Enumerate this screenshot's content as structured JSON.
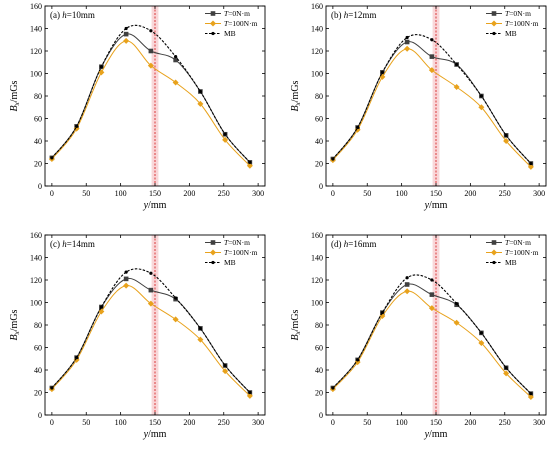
{
  "chart_data": [
    {
      "type": "line",
      "title": "(a) h=10mm",
      "xlabel": "y/mm",
      "ylabel": "Bx/mGs",
      "xlim": [
        -10,
        310
      ],
      "ylim": [
        0,
        160
      ],
      "xticks": [
        0,
        50,
        100,
        150,
        200,
        250,
        300
      ],
      "yticks": [
        0,
        20,
        40,
        60,
        80,
        100,
        120,
        140,
        160
      ],
      "highlight_band": [
        145,
        155
      ],
      "dashed_line_x": 150,
      "series": [
        {
          "name": "T=0N·m",
          "color": "#404040",
          "marker": "square",
          "style": "solid",
          "x": [
            0,
            36,
            72,
            108,
            144,
            180,
            216,
            252,
            288
          ],
          "y": [
            25,
            53,
            106,
            135,
            120,
            112,
            84,
            46,
            21
          ]
        },
        {
          "name": "T=100N·m",
          "color": "#e8a21c",
          "marker": "diamond",
          "style": "solid",
          "x": [
            0,
            36,
            72,
            108,
            144,
            180,
            216,
            252,
            288
          ],
          "y": [
            24,
            51,
            101,
            129,
            107,
            92,
            73,
            41,
            18
          ]
        },
        {
          "name": "MB",
          "color": "#000000",
          "marker": "dot",
          "style": "dashed",
          "x": [
            0,
            36,
            72,
            108,
            144,
            180,
            216,
            252,
            288
          ],
          "y": [
            25,
            53,
            106,
            140,
            138,
            115,
            84,
            46,
            21
          ]
        }
      ]
    },
    {
      "type": "line",
      "title": "(b) h=12mm",
      "xlabel": "y/mm",
      "ylabel": "Bx/mGs",
      "xlim": [
        -10,
        310
      ],
      "ylim": [
        0,
        160
      ],
      "xticks": [
        0,
        50,
        100,
        150,
        200,
        250,
        300
      ],
      "yticks": [
        0,
        20,
        40,
        60,
        80,
        100,
        120,
        140,
        160
      ],
      "highlight_band": [
        145,
        155
      ],
      "dashed_line_x": 150,
      "series": [
        {
          "name": "T=0N·m",
          "color": "#404040",
          "marker": "square",
          "style": "solid",
          "x": [
            0,
            36,
            72,
            108,
            144,
            180,
            216,
            252,
            288
          ],
          "y": [
            24,
            52,
            101,
            128,
            115,
            108,
            80,
            45,
            20
          ]
        },
        {
          "name": "T=100N·m",
          "color": "#e8a21c",
          "marker": "diamond",
          "style": "solid",
          "x": [
            0,
            36,
            72,
            108,
            144,
            180,
            216,
            252,
            288
          ],
          "y": [
            23,
            50,
            97,
            122,
            103,
            88,
            70,
            40,
            17
          ]
        },
        {
          "name": "MB",
          "color": "#000000",
          "marker": "dot",
          "style": "dashed",
          "x": [
            0,
            36,
            72,
            108,
            144,
            180,
            216,
            252,
            288
          ],
          "y": [
            24,
            52,
            101,
            132,
            130,
            108,
            80,
            45,
            20
          ]
        }
      ]
    },
    {
      "type": "line",
      "title": "(c) h=14mm",
      "xlabel": "y/mm",
      "ylabel": "Bx/mGs",
      "xlim": [
        -10,
        310
      ],
      "ylim": [
        0,
        160
      ],
      "xticks": [
        0,
        50,
        100,
        150,
        200,
        250,
        300
      ],
      "yticks": [
        0,
        20,
        40,
        60,
        80,
        100,
        120,
        140,
        160
      ],
      "highlight_band": [
        145,
        155
      ],
      "dashed_line_x": 150,
      "series": [
        {
          "name": "T=0N·m",
          "color": "#404040",
          "marker": "square",
          "style": "solid",
          "x": [
            0,
            36,
            72,
            108,
            144,
            180,
            216,
            252,
            288
          ],
          "y": [
            24,
            51,
            96,
            121,
            111,
            103,
            77,
            44,
            20
          ]
        },
        {
          "name": "T=100N·m",
          "color": "#e8a21c",
          "marker": "diamond",
          "style": "solid",
          "x": [
            0,
            36,
            72,
            108,
            144,
            180,
            216,
            252,
            288
          ],
          "y": [
            23,
            49,
            92,
            115,
            99,
            85,
            67,
            39,
            17
          ]
        },
        {
          "name": "MB",
          "color": "#000000",
          "marker": "dot",
          "style": "dashed",
          "x": [
            0,
            36,
            72,
            108,
            144,
            180,
            216,
            252,
            288
          ],
          "y": [
            24,
            51,
            96,
            127,
            126,
            104,
            77,
            44,
            20
          ]
        }
      ]
    },
    {
      "type": "line",
      "title": "(d) h=16mm",
      "xlabel": "y/mm",
      "ylabel": "Bx/mGs",
      "xlim": [
        -10,
        310
      ],
      "ylim": [
        0,
        160
      ],
      "xticks": [
        0,
        50,
        100,
        150,
        200,
        250,
        300
      ],
      "yticks": [
        0,
        20,
        40,
        60,
        80,
        100,
        120,
        140,
        160
      ],
      "highlight_band": [
        145,
        155
      ],
      "dashed_line_x": 150,
      "series": [
        {
          "name": "T=0N·m",
          "color": "#404040",
          "marker": "square",
          "style": "solid",
          "x": [
            0,
            36,
            72,
            108,
            144,
            180,
            216,
            252,
            288
          ],
          "y": [
            24,
            49,
            91,
            116,
            107,
            98,
            73,
            42,
            19
          ]
        },
        {
          "name": "T=100N·m",
          "color": "#e8a21c",
          "marker": "diamond",
          "style": "solid",
          "x": [
            0,
            36,
            72,
            108,
            144,
            180,
            216,
            252,
            288
          ],
          "y": [
            23,
            47,
            88,
            110,
            95,
            82,
            64,
            37,
            16
          ]
        },
        {
          "name": "MB",
          "color": "#000000",
          "marker": "dot",
          "style": "dashed",
          "x": [
            0,
            36,
            72,
            108,
            144,
            180,
            216,
            252,
            288
          ],
          "y": [
            24,
            49,
            91,
            122,
            120,
            99,
            73,
            42,
            19
          ]
        }
      ]
    }
  ]
}
